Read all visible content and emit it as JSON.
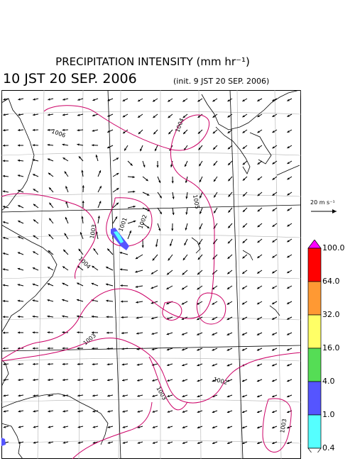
{
  "header": {
    "title": "PRECIPITATION INTENSITY (mm hr⁻¹)",
    "valid_time": "10 JST 20 SEP. 2006",
    "init_time": "(init. 9 JST 20 SEP. 2006)"
  },
  "reference_vector": {
    "label": "20 m s⁻¹"
  },
  "colorbar": {
    "labels": [
      "100.0",
      "64.0",
      "32.0",
      "16.0",
      "4.0",
      "1.0",
      "0.4"
    ],
    "colors": [
      "#ff00ff",
      "#ff0000",
      "#ff9933",
      "#ffff66",
      "#55dd55",
      "#5555ff",
      "#55ffff",
      "#ffffff"
    ]
  },
  "contours": {
    "color": "#cc0066",
    "labels": [
      "1006",
      "1004",
      "1005",
      "1003",
      "1001",
      "1002",
      "1004",
      "1003",
      "1003",
      "1002",
      "1003"
    ]
  },
  "precipitation_color": "#5555ff"
}
